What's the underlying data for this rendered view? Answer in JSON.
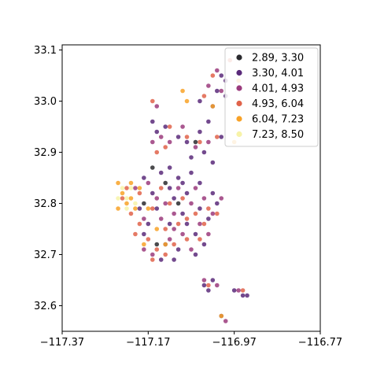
{
  "chart_data": {
    "type": "scatter",
    "title": "",
    "xlabel": "",
    "ylabel": "",
    "xlim": [
      -117.37,
      -116.77
    ],
    "ylim": [
      32.55,
      33.11
    ],
    "x_ticks": [
      -117.37,
      -117.17,
      -116.97,
      -116.77
    ],
    "x_tick_labels": [
      "−117.37",
      "−117.17",
      "−116.97",
      "−116.77"
    ],
    "y_ticks": [
      32.6,
      32.7,
      32.8,
      32.9,
      33.0,
      33.1
    ],
    "y_tick_labels": [
      "32.6",
      "32.7",
      "32.8",
      "32.9",
      "33.0",
      "33.1"
    ],
    "grid": false,
    "legend_position": "top-right",
    "colormap": "inferno",
    "series": [
      {
        "name": "2.89, 3.30",
        "color": "#2a2a2e",
        "points": [
          [
            -117.16,
            32.87
          ],
          [
            -117.13,
            32.84
          ],
          [
            -117.1,
            32.8
          ],
          [
            -117.15,
            32.72
          ],
          [
            -117.06,
            32.92
          ],
          [
            -117.18,
            32.8
          ]
        ]
      },
      {
        "name": "3.30, 4.01",
        "color": "#5a2a7a",
        "points": [
          [
            -117.14,
            32.86
          ],
          [
            -117.12,
            32.83
          ],
          [
            -117.1,
            32.85
          ],
          [
            -117.08,
            32.82
          ],
          [
            -117.09,
            32.78
          ],
          [
            -117.12,
            32.76
          ],
          [
            -117.13,
            32.72
          ],
          [
            -117.1,
            32.71
          ],
          [
            -117.06,
            32.74
          ],
          [
            -117.05,
            32.79
          ],
          [
            -117.03,
            32.77
          ],
          [
            -117.04,
            32.72
          ],
          [
            -117.16,
            32.82
          ],
          [
            -117.18,
            32.85
          ],
          [
            -117.19,
            32.79
          ],
          [
            -117.15,
            32.79
          ],
          [
            -117.11,
            32.81
          ],
          [
            -117.07,
            32.86
          ],
          [
            -117.05,
            32.84
          ],
          [
            -117.02,
            32.82
          ],
          [
            -117.01,
            32.8
          ],
          [
            -117.06,
            32.7
          ],
          [
            -117.14,
            32.69
          ],
          [
            -117.11,
            32.69
          ],
          [
            -117.08,
            32.92
          ],
          [
            -117.05,
            32.94
          ],
          [
            -117.04,
            32.9
          ],
          [
            -117.02,
            32.88
          ],
          [
            -117.0,
            32.93
          ],
          [
            -117.03,
            32.96
          ],
          [
            -117.07,
            32.89
          ],
          [
            -117.1,
            32.93
          ],
          [
            -117.13,
            32.95
          ],
          [
            -117.15,
            32.94
          ],
          [
            -117.16,
            32.96
          ],
          [
            -117.01,
            33.02
          ],
          [
            -116.99,
            33.01
          ],
          [
            -117.02,
            32.99
          ],
          [
            -116.99,
            33.04
          ],
          [
            -117.0,
            33.05
          ],
          [
            -117.05,
            33.0
          ],
          [
            -117.04,
            32.64
          ],
          [
            -117.02,
            32.65
          ],
          [
            -117.03,
            32.63
          ],
          [
            -116.97,
            32.63
          ],
          [
            -116.95,
            32.62
          ],
          [
            -116.94,
            32.62
          ],
          [
            -117.0,
            32.58
          ],
          [
            -117.09,
            32.84
          ],
          [
            -117.17,
            32.76
          ],
          [
            -117.18,
            32.74
          ],
          [
            -117.12,
            32.87
          ],
          [
            -117.08,
            32.76
          ]
        ]
      },
      {
        "name": "4.01, 4.93",
        "color": "#9b3b7d",
        "points": [
          [
            -117.2,
            32.83
          ],
          [
            -117.17,
            32.84
          ],
          [
            -117.15,
            32.81
          ],
          [
            -117.14,
            32.77
          ],
          [
            -117.11,
            32.78
          ],
          [
            -117.09,
            32.74
          ],
          [
            -117.07,
            32.8
          ],
          [
            -117.04,
            32.81
          ],
          [
            -117.02,
            32.78
          ],
          [
            -117.0,
            32.81
          ],
          [
            -117.18,
            32.71
          ],
          [
            -117.16,
            32.7
          ],
          [
            -117.12,
            32.73
          ],
          [
            -117.07,
            32.71
          ],
          [
            -117.03,
            32.74
          ],
          [
            -117.06,
            32.83
          ],
          [
            -117.13,
            32.8
          ],
          [
            -117.1,
            32.83
          ],
          [
            -117.14,
            32.93
          ],
          [
            -117.12,
            32.92
          ],
          [
            -117.06,
            32.91
          ],
          [
            -117.03,
            32.92
          ],
          [
            -117.09,
            32.95
          ],
          [
            -117.16,
            32.92
          ],
          [
            -117.03,
            33.03
          ],
          [
            -117.0,
            33.02
          ],
          [
            -117.01,
            33.06
          ],
          [
            -117.15,
            32.99
          ],
          [
            -117.04,
            32.65
          ],
          [
            -117.01,
            32.64
          ],
          [
            -116.96,
            32.63
          ],
          [
            -116.99,
            32.57
          ],
          [
            -117.18,
            32.77
          ],
          [
            -117.11,
            32.75
          ],
          [
            -117.05,
            32.76
          ]
        ]
      },
      {
        "name": "4.93, 6.04",
        "color": "#e0634a",
        "points": [
          [
            -117.22,
            32.83
          ],
          [
            -117.23,
            32.81
          ],
          [
            -117.21,
            32.78
          ],
          [
            -117.19,
            32.76
          ],
          [
            -117.17,
            32.73
          ],
          [
            -117.15,
            32.71
          ],
          [
            -117.13,
            32.75
          ],
          [
            -117.11,
            32.72
          ],
          [
            -117.08,
            32.77
          ],
          [
            -117.05,
            32.73
          ],
          [
            -117.03,
            32.79
          ],
          [
            -117.01,
            32.78
          ],
          [
            -117.19,
            32.82
          ],
          [
            -117.16,
            32.79
          ],
          [
            -117.14,
            32.83
          ],
          [
            -117.12,
            32.8
          ],
          [
            -117.1,
            32.76
          ],
          [
            -117.08,
            32.73
          ],
          [
            -117.06,
            32.78
          ],
          [
            -117.09,
            32.81
          ],
          [
            -117.15,
            32.9
          ],
          [
            -117.13,
            32.91
          ],
          [
            -117.08,
            32.93
          ],
          [
            -117.05,
            32.92
          ],
          [
            -117.01,
            32.93
          ],
          [
            -117.12,
            32.95
          ],
          [
            -117.04,
            33.01
          ],
          [
            -117.02,
            33.05
          ],
          [
            -116.98,
            33.08
          ],
          [
            -117.16,
            33.0
          ],
          [
            -117.03,
            32.64
          ],
          [
            -116.95,
            32.63
          ],
          [
            -117.2,
            32.74
          ],
          [
            -117.16,
            32.69
          ],
          [
            -117.13,
            32.7
          ],
          [
            -117.04,
            32.76
          ]
        ]
      },
      {
        "name": "6.04, 7.23",
        "color": "#f8a227",
        "points": [
          [
            -117.24,
            32.84
          ],
          [
            -117.23,
            32.82
          ],
          [
            -117.22,
            32.8
          ],
          [
            -117.21,
            32.84
          ],
          [
            -117.2,
            32.79
          ],
          [
            -117.19,
            32.83
          ],
          [
            -117.17,
            32.79
          ],
          [
            -117.15,
            32.75
          ],
          [
            -117.24,
            32.79
          ],
          [
            -117.21,
            32.81
          ],
          [
            -117.09,
            33.02
          ],
          [
            -117.08,
            33.0
          ],
          [
            -116.96,
            33.04
          ],
          [
            -116.97,
            32.92
          ],
          [
            -117.0,
            32.58
          ],
          [
            -117.02,
            32.99
          ],
          [
            -117.13,
            32.72
          ],
          [
            -117.18,
            32.72
          ]
        ]
      },
      {
        "name": "7.23, 8.50",
        "color": "#f7f3a8",
        "points": [
          [
            -117.23,
            32.83
          ],
          [
            -117.22,
            32.81
          ],
          [
            -117.21,
            32.83
          ],
          [
            -117.2,
            32.8
          ],
          [
            -117.24,
            32.81
          ],
          [
            -117.22,
            32.79
          ]
        ]
      }
    ]
  }
}
